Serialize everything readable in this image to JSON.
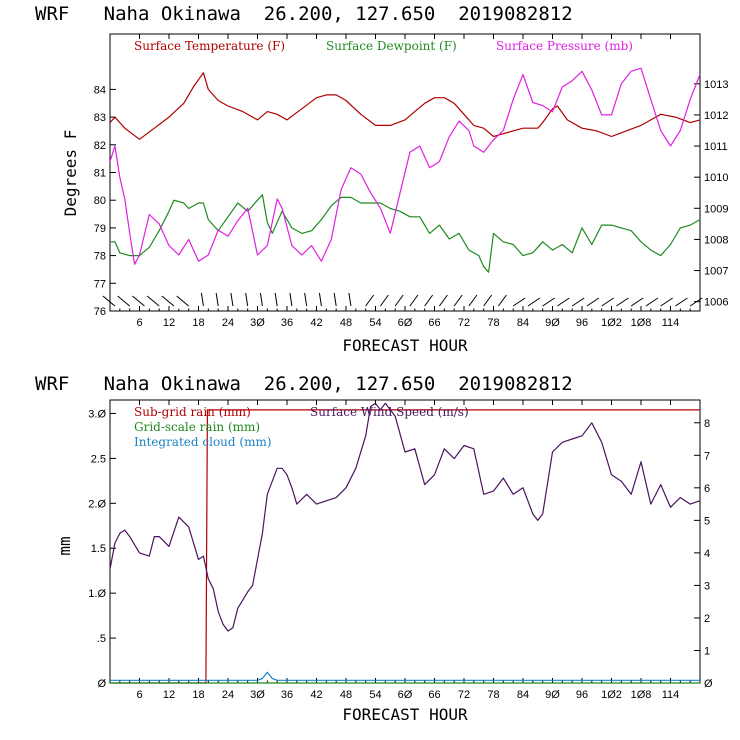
{
  "chart_data": [
    {
      "type": "line",
      "title": "WRF   Naha Okinawa  26.200, 127.650  2019082812",
      "xlabel": "FORECAST HOUR",
      "ylabel": "Degrees F",
      "xlim": [
        0,
        120
      ],
      "ylim": [
        76,
        86
      ],
      "y2lim": [
        1005.7,
        1014.6
      ],
      "xticks": [
        6,
        12,
        18,
        24,
        30,
        36,
        42,
        48,
        54,
        60,
        66,
        72,
        78,
        84,
        90,
        96,
        102,
        108,
        114
      ],
      "xtick_labels": [
        "6",
        "12",
        "18",
        "24",
        "3Ø",
        "36",
        "42",
        "48",
        "54",
        "6Ø",
        "66",
        "72",
        "78",
        "84",
        "9Ø",
        "96",
        "1Ø2",
        "1Ø8",
        "114"
      ],
      "yticks": [
        76,
        77,
        78,
        79,
        80,
        81,
        82,
        83,
        84
      ],
      "y2ticks": [
        1006,
        1007,
        1008,
        1009,
        1010,
        1011,
        1012,
        1013
      ],
      "wind_barbs": "wind barbs along bottom axis every ~3 h",
      "series": [
        {
          "name": "Surface Temperature (F)",
          "axis": "left",
          "color": "#b00000",
          "x": [
            0,
            1,
            3,
            6,
            9,
            12,
            15,
            17,
            19,
            20,
            22,
            24,
            27,
            30,
            32,
            34,
            36,
            39,
            42,
            44,
            46,
            48,
            51,
            54,
            57,
            60,
            62,
            64,
            66,
            68,
            70,
            72,
            74,
            76,
            78,
            80,
            84,
            87,
            88,
            90,
            91,
            93,
            96,
            99,
            102,
            105,
            108,
            110,
            112,
            115,
            118,
            120
          ],
          "values": [
            82.8,
            83.0,
            82.6,
            82.2,
            82.6,
            83.0,
            83.5,
            84.1,
            84.6,
            84.0,
            83.6,
            83.4,
            83.2,
            82.9,
            83.2,
            83.1,
            82.9,
            83.3,
            83.7,
            83.8,
            83.8,
            83.6,
            83.1,
            82.7,
            82.7,
            82.9,
            83.2,
            83.5,
            83.7,
            83.7,
            83.5,
            83.1,
            82.7,
            82.6,
            82.3,
            82.4,
            82.6,
            82.6,
            82.8,
            83.3,
            83.4,
            82.9,
            82.6,
            82.5,
            82.3,
            82.5,
            82.7,
            82.9,
            83.1,
            83.0,
            82.8,
            82.9
          ]
        },
        {
          "name": "Surface Dewpoint (F)",
          "axis": "left",
          "color": "#1f8a1f",
          "x": [
            0,
            1,
            2,
            4,
            6,
            8,
            10,
            12,
            13,
            15,
            16,
            18,
            19,
            20,
            21,
            22,
            24,
            26,
            28,
            30,
            31,
            32,
            33,
            35,
            37,
            39,
            41,
            43,
            45,
            47,
            49,
            51,
            53,
            55,
            57,
            59,
            61,
            63,
            65,
            67,
            69,
            71,
            73,
            75,
            76,
            77,
            78,
            80,
            82,
            84,
            86,
            88,
            90,
            92,
            94,
            96,
            98,
            100,
            102,
            104,
            106,
            108,
            110,
            112,
            114,
            116,
            118,
            120
          ],
          "values": [
            78.5,
            78.5,
            78.1,
            78.0,
            78.0,
            78.3,
            78.9,
            79.6,
            80.0,
            79.9,
            79.7,
            79.9,
            79.9,
            79.3,
            79.1,
            78.9,
            79.4,
            79.9,
            79.6,
            80.0,
            80.2,
            79.2,
            78.8,
            79.6,
            79.0,
            78.8,
            78.9,
            79.3,
            79.8,
            80.1,
            80.1,
            79.9,
            79.9,
            79.9,
            79.7,
            79.6,
            79.4,
            79.4,
            78.8,
            79.1,
            78.6,
            78.8,
            78.2,
            78.0,
            77.6,
            77.4,
            78.8,
            78.5,
            78.4,
            78.0,
            78.1,
            78.5,
            78.2,
            78.4,
            78.1,
            79.0,
            78.4,
            79.1,
            79.1,
            79.0,
            78.9,
            78.5,
            78.2,
            78.0,
            78.4,
            79.0,
            79.1,
            79.3
          ]
        },
        {
          "name": "Surface Pressure (mb)",
          "axis": "right",
          "color": "#e020e0",
          "x": [
            0,
            1,
            2,
            3,
            4,
            5,
            6,
            8,
            10,
            12,
            14,
            16,
            18,
            20,
            22,
            24,
            26,
            28,
            30,
            32,
            34,
            35,
            37,
            39,
            41,
            43,
            45,
            47,
            49,
            51,
            53,
            55,
            57,
            59,
            61,
            63,
            65,
            67,
            69,
            71,
            73,
            74,
            76,
            78,
            80,
            82,
            84,
            86,
            88,
            90,
            91,
            92,
            94,
            96,
            98,
            100,
            102,
            104,
            106,
            108,
            110,
            112,
            114,
            116,
            118,
            120
          ],
          "values": [
            1010.5,
            1011.0,
            1010.0,
            1009.3,
            1008.2,
            1007.2,
            1007.5,
            1008.8,
            1008.5,
            1007.8,
            1007.5,
            1008.0,
            1007.3,
            1007.5,
            1008.3,
            1008.1,
            1008.6,
            1009.0,
            1007.5,
            1007.8,
            1009.3,
            1009.0,
            1007.8,
            1007.5,
            1007.8,
            1007.3,
            1008.0,
            1009.6,
            1010.3,
            1010.1,
            1009.5,
            1009.0,
            1008.2,
            1009.5,
            1010.8,
            1011.0,
            1010.3,
            1010.5,
            1011.3,
            1011.8,
            1011.5,
            1011.0,
            1010.8,
            1011.2,
            1011.5,
            1012.5,
            1013.3,
            1012.4,
            1012.3,
            1012.1,
            1012.5,
            1012.9,
            1013.1,
            1013.4,
            1012.8,
            1012.0,
            1012.0,
            1013.0,
            1013.4,
            1013.5,
            1012.5,
            1011.5,
            1011.0,
            1011.5,
            1012.5,
            1013.3
          ]
        }
      ]
    },
    {
      "type": "line",
      "title": "WRF   Naha Okinawa  26.200, 127.650  2019082812",
      "xlabel": "FORECAST HOUR",
      "ylabel": "mm",
      "xlim": [
        0,
        120
      ],
      "ylim": [
        0,
        3.15
      ],
      "y2lim": [
        0,
        8.7
      ],
      "xticks": [
        6,
        12,
        18,
        24,
        30,
        36,
        42,
        48,
        54,
        60,
        66,
        72,
        78,
        84,
        90,
        96,
        102,
        108,
        114
      ],
      "xtick_labels": [
        "6",
        "12",
        "18",
        "24",
        "3Ø",
        "36",
        "42",
        "48",
        "54",
        "6Ø",
        "66",
        "72",
        "78",
        "84",
        "9Ø",
        "96",
        "1Ø2",
        "1Ø8",
        "114"
      ],
      "yticks": [
        0,
        0.5,
        1.0,
        1.5,
        2.0,
        2.5,
        3.0
      ],
      "ytick_labels": [
        "Ø",
        ".5",
        "1.Ø",
        "1.5",
        "2.Ø",
        "2.5",
        "3.Ø"
      ],
      "y2ticks": [
        0,
        1,
        2,
        3,
        4,
        5,
        6,
        7,
        8
      ],
      "y2tick_labels": [
        "Ø",
        "1",
        "2",
        "3",
        "4",
        "5",
        "6",
        "7",
        "8"
      ],
      "series": [
        {
          "name": "Sub-grid rain (mm)",
          "axis": "left",
          "color": "#b00000",
          "x": [
            0,
            19.5,
            19.8,
            120
          ],
          "values": [
            0,
            0,
            3.04,
            3.04
          ]
        },
        {
          "name": "Grid-scale rain (mm)",
          "axis": "left",
          "color": "#1f8a1f",
          "x": [
            0,
            120
          ],
          "values": [
            0,
            0
          ]
        },
        {
          "name": "Integrated cloud (mm)",
          "axis": "left",
          "color": "#1c82c8",
          "x": [
            0,
            30,
            31,
            32,
            33,
            34,
            120
          ],
          "values": [
            0.03,
            0.03,
            0.05,
            0.12,
            0.05,
            0.03,
            0.03
          ]
        },
        {
          "name": "Surface Wind Speed (m/s)",
          "axis": "right",
          "color": "#4a1460",
          "x": [
            0,
            1,
            2,
            3,
            4,
            6,
            8,
            9,
            10,
            12,
            14,
            16,
            18,
            19,
            20,
            21,
            22,
            23,
            24,
            25,
            26,
            28,
            29,
            30,
            31,
            32,
            34,
            35,
            36,
            37,
            38,
            40,
            42,
            44,
            46,
            48,
            50,
            52,
            53,
            54,
            55,
            56,
            58,
            60,
            62,
            64,
            66,
            68,
            70,
            72,
            74,
            76,
            78,
            80,
            82,
            84,
            86,
            87,
            88,
            90,
            92,
            94,
            96,
            98,
            100,
            102,
            104,
            106,
            108,
            110,
            112,
            114,
            116,
            118,
            120
          ],
          "values": [
            3.5,
            4.3,
            4.6,
            4.7,
            4.5,
            4.0,
            3.9,
            4.5,
            4.5,
            4.2,
            5.1,
            4.8,
            3.8,
            3.9,
            3.2,
            2.9,
            2.2,
            1.8,
            1.6,
            1.7,
            2.3,
            2.8,
            3.0,
            3.8,
            4.6,
            5.8,
            6.6,
            6.6,
            6.4,
            6.0,
            5.5,
            5.8,
            5.5,
            5.6,
            5.7,
            6.0,
            6.6,
            7.6,
            8.5,
            8.6,
            8.4,
            8.6,
            8.2,
            7.1,
            7.2,
            6.1,
            6.4,
            7.2,
            6.9,
            7.3,
            7.2,
            5.8,
            5.9,
            6.3,
            5.8,
            6.0,
            5.2,
            5.0,
            5.2,
            7.1,
            7.4,
            7.5,
            7.6,
            8.0,
            7.4,
            6.4,
            6.2,
            5.8,
            6.8,
            5.5,
            6.1,
            5.4,
            5.7,
            5.5,
            5.6
          ]
        }
      ]
    }
  ]
}
